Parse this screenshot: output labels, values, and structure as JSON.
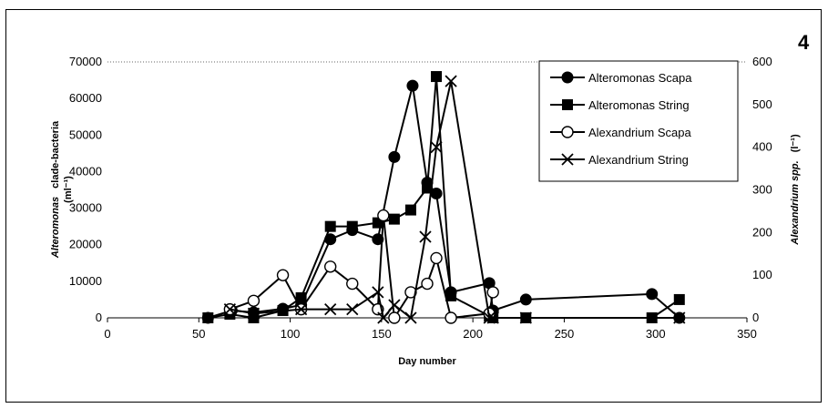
{
  "panel_label": "4",
  "chart_data": {
    "type": "line",
    "xlabel": "Day number",
    "ylabel_left_italic": "Alteromonas",
    "ylabel_left_rest": "clade-bacteria",
    "ylabel_left_unit": "(ml⁻¹)",
    "ylabel_right_italic": "Alexandrium spp.",
    "ylabel_right_unit": "(l⁻¹)",
    "xlim": [
      0,
      350
    ],
    "ylim_left": [
      0,
      70000
    ],
    "ylim_right": [
      0,
      600
    ],
    "xticks": [
      "0",
      "50",
      "100",
      "150",
      "200",
      "250",
      "300",
      "350"
    ],
    "yticks_left": [
      "0",
      "10000",
      "20000",
      "30000",
      "40000",
      "50000",
      "60000",
      "70000"
    ],
    "yticks_right": [
      "0",
      "100",
      "200",
      "300",
      "400",
      "500",
      "600"
    ],
    "legend_position": "top-right",
    "series": [
      {
        "name": "Alteromonas Scapa",
        "axis": "left",
        "marker": "filled-circle",
        "points": [
          [
            55,
            0
          ],
          [
            68,
            2000
          ],
          [
            80,
            1500
          ],
          [
            96,
            2500
          ],
          [
            106,
            3500
          ],
          [
            122,
            21500
          ],
          [
            134,
            24000
          ],
          [
            148,
            21500
          ],
          [
            157,
            44000
          ],
          [
            167,
            63500
          ],
          [
            175,
            37000
          ],
          [
            180,
            34000
          ],
          [
            188,
            7000
          ],
          [
            209,
            9500
          ],
          [
            211,
            2000
          ],
          [
            229,
            5000
          ],
          [
            298,
            6500
          ],
          [
            313,
            0
          ]
        ]
      },
      {
        "name": "Alteromonas String",
        "axis": "left",
        "marker": "filled-square",
        "points": [
          [
            55,
            0
          ],
          [
            67,
            1000
          ],
          [
            80,
            0
          ],
          [
            96,
            2000
          ],
          [
            106,
            5500
          ],
          [
            122,
            25000
          ],
          [
            134,
            25000
          ],
          [
            148,
            26000
          ],
          [
            157,
            27000
          ],
          [
            166,
            29500
          ],
          [
            175,
            35500
          ],
          [
            180,
            66000
          ],
          [
            188,
            6000
          ],
          [
            209,
            500
          ],
          [
            211,
            0
          ],
          [
            229,
            0
          ],
          [
            298,
            0
          ],
          [
            313,
            5000
          ]
        ]
      },
      {
        "name": "Alexandrium Scapa",
        "axis": "right",
        "marker": "open-circle",
        "points": [
          [
            67,
            20
          ],
          [
            80,
            40
          ],
          [
            96,
            100
          ],
          [
            106,
            20
          ],
          [
            122,
            120
          ],
          [
            134,
            80
          ],
          [
            148,
            20
          ],
          [
            151,
            240
          ],
          [
            157,
            0
          ],
          [
            166,
            60
          ],
          [
            175,
            80
          ],
          [
            180,
            140
          ],
          [
            188,
            0
          ],
          [
            209,
            10
          ],
          [
            211,
            60
          ]
        ]
      },
      {
        "name": "Alexandrium String",
        "axis": "right",
        "marker": "x",
        "points": [
          [
            67,
            20
          ],
          [
            80,
            10
          ],
          [
            106,
            20
          ],
          [
            122,
            20
          ],
          [
            134,
            20
          ],
          [
            148,
            60
          ],
          [
            151,
            0
          ],
          [
            157,
            30
          ],
          [
            166,
            0
          ],
          [
            174,
            190
          ],
          [
            180,
            400
          ],
          [
            188,
            555
          ],
          [
            209,
            0
          ],
          [
            211,
            0
          ],
          [
            229,
            0
          ],
          [
            313,
            0
          ]
        ]
      }
    ]
  }
}
